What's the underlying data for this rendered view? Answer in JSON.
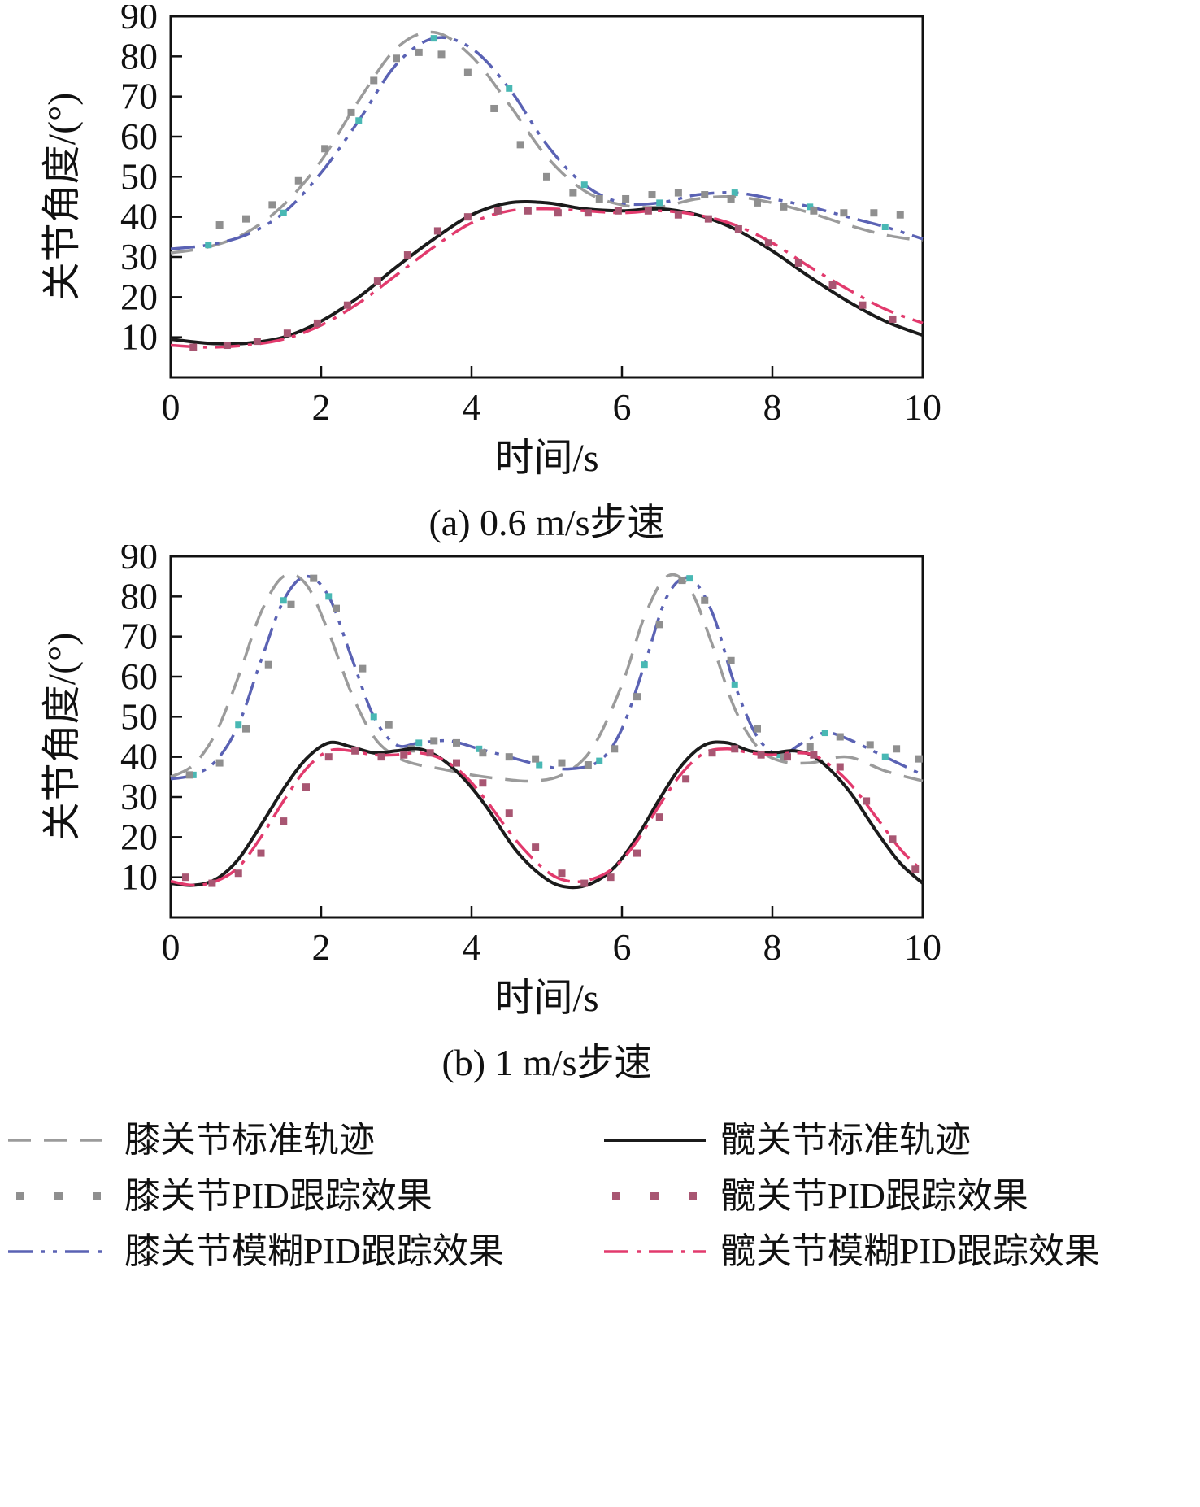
{
  "chart_data": [
    {
      "type": "line",
      "caption": "(a) 0.6 m/s步速",
      "xlabel": "时间/s",
      "ylabel": "关节角度/(°)",
      "xlim": [
        0,
        10
      ],
      "ylim": [
        0,
        90
      ],
      "xticks": [
        0,
        2,
        4,
        6,
        8,
        10
      ],
      "yticks": [
        10,
        20,
        30,
        40,
        50,
        60,
        70,
        80,
        90
      ],
      "grid": false,
      "legend_position": "bottom",
      "series": [
        {
          "name": "膝关节标准轨迹",
          "style": "knee_std",
          "x": [
            0,
            0.5,
            1,
            1.5,
            2,
            2.5,
            3,
            3.5,
            4,
            4.5,
            5,
            5.5,
            6,
            6.5,
            7,
            7.5,
            8,
            8.5,
            9,
            9.5,
            10
          ],
          "y": [
            31,
            32.5,
            36,
            43,
            54,
            69,
            82,
            86,
            80,
            68,
            55,
            46.5,
            43,
            42.5,
            44.5,
            45,
            43.5,
            41,
            38,
            35.5,
            34
          ]
        },
        {
          "name": "膝关节模糊PID跟踪效果",
          "style": "knee_fuzzy",
          "x": [
            0,
            0.5,
            1,
            1.5,
            2,
            2.5,
            3,
            3.5,
            4,
            4.5,
            5,
            5.5,
            6,
            6.5,
            7,
            7.5,
            8,
            8.5,
            9,
            9.5,
            10
          ],
          "y": [
            32,
            33,
            35.5,
            41,
            51,
            64,
            78,
            84.5,
            82,
            72,
            58,
            48,
            43.5,
            43.5,
            45.5,
            46,
            44.5,
            42.5,
            40,
            37.5,
            34.5
          ]
        },
        {
          "name": "膝关节PID跟踪效果",
          "style": "knee_pid",
          "x": [
            0.65,
            1.0,
            1.35,
            1.7,
            2.05,
            2.4,
            2.7,
            3.0,
            3.3,
            3.6,
            3.95,
            4.3,
            4.65,
            5.0,
            5.35,
            5.7,
            6.05,
            6.4,
            6.75,
            7.1,
            7.45,
            7.8,
            8.15,
            8.55,
            8.95,
            9.35,
            9.7
          ],
          "y": [
            38,
            39.5,
            43,
            49,
            57,
            66,
            74,
            79.5,
            81,
            80.5,
            76,
            67,
            58,
            50,
            46,
            44.5,
            44.5,
            45.5,
            46,
            45.5,
            44.5,
            43.5,
            42.5,
            41.5,
            41,
            41,
            40.5
          ]
        },
        {
          "name": "髋关节标准轨迹",
          "style": "hip_std",
          "x": [
            0,
            0.5,
            1,
            1.5,
            2,
            2.5,
            3,
            3.5,
            4,
            4.5,
            5,
            5.5,
            6,
            6.5,
            7,
            7.5,
            8,
            8.5,
            9,
            9.5,
            10
          ],
          "y": [
            9.5,
            8.5,
            8.5,
            10,
            14,
            20,
            27.5,
            34.5,
            40.5,
            43.5,
            43.5,
            42,
            41.5,
            42,
            40.5,
            37,
            31.5,
            25,
            19,
            14,
            10.5
          ]
        },
        {
          "name": "髋关节模糊PID跟踪效果",
          "style": "hip_fuzzy",
          "x": [
            0,
            0.5,
            1,
            1.5,
            2,
            2.5,
            3,
            3.5,
            4,
            4.5,
            5,
            5.5,
            6,
            6.5,
            7,
            7.5,
            8,
            8.5,
            9,
            9.5,
            10
          ],
          "y": [
            8,
            7.5,
            8,
            9.5,
            13,
            18.5,
            25.5,
            32.5,
            38.5,
            41.5,
            42,
            41.5,
            41,
            41.5,
            40.5,
            38,
            33.5,
            27.5,
            22,
            17,
            13.5
          ]
        },
        {
          "name": "髋关节PID跟踪效果",
          "style": "hip_pid",
          "x": [
            0.3,
            0.75,
            1.15,
            1.55,
            1.95,
            2.35,
            2.75,
            3.15,
            3.55,
            3.95,
            4.35,
            4.75,
            5.15,
            5.55,
            5.95,
            6.35,
            6.75,
            7.15,
            7.55,
            7.95,
            8.35,
            8.8,
            9.2,
            9.6
          ],
          "y": [
            7.5,
            8,
            9,
            11,
            13.5,
            18,
            24,
            30.5,
            36.5,
            40,
            41.5,
            41.5,
            41,
            41,
            41.5,
            41.5,
            40.5,
            39.5,
            37,
            33.5,
            28.5,
            23,
            18,
            14.5
          ]
        }
      ]
    },
    {
      "type": "line",
      "caption": "(b) 1 m/s步速",
      "xlabel": "时间/s",
      "ylabel": "关节角度/(°)",
      "xlim": [
        0,
        10
      ],
      "ylim": [
        0,
        90
      ],
      "xticks": [
        0,
        2,
        4,
        6,
        8,
        10
      ],
      "yticks": [
        10,
        20,
        30,
        40,
        50,
        60,
        70,
        80,
        90
      ],
      "grid": false,
      "legend_position": "bottom",
      "series": [
        {
          "name": "膝关节标准轨迹",
          "style": "knee_std",
          "x": [
            0,
            0.3,
            0.6,
            0.9,
            1.2,
            1.5,
            1.8,
            2.1,
            2.4,
            2.7,
            3.0,
            3.3,
            3.6,
            4.0,
            4.4,
            4.8,
            5.2,
            5.6,
            6.0,
            6.3,
            6.6,
            6.9,
            7.2,
            7.5,
            7.8,
            8.1,
            8.5,
            9.0,
            9.5,
            10
          ],
          "y": [
            35,
            38,
            46,
            60,
            76,
            85,
            83,
            71,
            56,
            45,
            40,
            38,
            37,
            35.5,
            34.5,
            34,
            35.5,
            42,
            58,
            75,
            85,
            82,
            68,
            52,
            42.5,
            39,
            38.5,
            40,
            36.5,
            34
          ]
        },
        {
          "name": "膝关节模糊PID跟踪效果",
          "style": "knee_fuzzy",
          "x": [
            0,
            0.3,
            0.6,
            0.9,
            1.2,
            1.5,
            1.8,
            2.1,
            2.4,
            2.7,
            3.0,
            3.3,
            3.7,
            4.1,
            4.5,
            4.9,
            5.3,
            5.7,
            6.0,
            6.3,
            6.6,
            6.9,
            7.2,
            7.5,
            7.8,
            8.1,
            8.4,
            8.7,
            9.0,
            9.5,
            10
          ],
          "y": [
            34.5,
            35.5,
            39,
            48,
            64,
            79,
            85,
            80,
            65,
            50,
            43,
            43.5,
            44,
            42,
            40,
            38,
            37,
            39,
            47,
            63,
            80,
            84.5,
            76,
            58,
            45,
            40.5,
            43.5,
            46,
            44.5,
            40,
            35.5
          ]
        },
        {
          "name": "膝关节PID跟踪效果",
          "style": "knee_pid",
          "x": [
            0.25,
            0.65,
            1.0,
            1.3,
            1.6,
            1.9,
            2.2,
            2.55,
            2.9,
            3.2,
            3.5,
            3.8,
            4.15,
            4.5,
            4.85,
            5.2,
            5.55,
            5.9,
            6.2,
            6.5,
            6.8,
            7.1,
            7.45,
            7.8,
            8.15,
            8.5,
            8.9,
            9.3,
            9.65,
            9.95
          ],
          "y": [
            35.5,
            38.5,
            47,
            63,
            78,
            84.5,
            77,
            62,
            48,
            42,
            44,
            43.5,
            41,
            40,
            39.5,
            38.5,
            38,
            42,
            55,
            73,
            84,
            79,
            64,
            47,
            40,
            42.5,
            45,
            43,
            42,
            39.5
          ]
        },
        {
          "name": "髋关节标准轨迹",
          "style": "hip_std",
          "x": [
            0,
            0.3,
            0.6,
            0.9,
            1.2,
            1.5,
            1.8,
            2.1,
            2.4,
            2.7,
            3.0,
            3.3,
            3.6,
            3.9,
            4.2,
            4.6,
            5.0,
            5.3,
            5.6,
            5.9,
            6.2,
            6.5,
            6.8,
            7.1,
            7.4,
            7.7,
            8.0,
            8.3,
            8.6,
            9.0,
            9.4,
            9.7,
            10
          ],
          "y": [
            8.5,
            8,
            9.5,
            14.5,
            23,
            32,
            39.5,
            43.5,
            42.5,
            41,
            41.5,
            42,
            39.5,
            34.5,
            27.5,
            16.5,
            9.5,
            7.5,
            8.5,
            12.5,
            20,
            29.5,
            38,
            43,
            43.5,
            41.5,
            41,
            41.5,
            39.5,
            32,
            21,
            13.5,
            8.5
          ]
        },
        {
          "name": "髋关节模糊PID跟踪效果",
          "style": "hip_fuzzy",
          "x": [
            0,
            0.3,
            0.6,
            0.9,
            1.2,
            1.5,
            1.8,
            2.1,
            2.4,
            2.7,
            3.0,
            3.3,
            3.6,
            3.9,
            4.2,
            4.6,
            5.0,
            5.3,
            5.6,
            5.9,
            6.2,
            6.5,
            6.8,
            7.1,
            7.4,
            7.7,
            8.0,
            8.3,
            8.6,
            9.0,
            9.4,
            9.7,
            10
          ],
          "y": [
            9,
            8,
            9,
            12.5,
            20,
            29,
            37,
            41.5,
            41.5,
            40.5,
            40.5,
            41,
            39.5,
            35.5,
            29,
            19,
            11.5,
            9,
            9.5,
            12.5,
            19,
            28,
            36,
            41,
            42,
            41,
            40.5,
            41,
            40,
            34,
            24.5,
            17,
            11.5
          ]
        },
        {
          "name": "髋关节PID跟踪效果",
          "style": "hip_pid",
          "x": [
            0.2,
            0.55,
            0.9,
            1.2,
            1.5,
            1.8,
            2.1,
            2.45,
            2.8,
            3.1,
            3.45,
            3.8,
            4.15,
            4.5,
            4.85,
            5.2,
            5.5,
            5.85,
            6.2,
            6.5,
            6.85,
            7.2,
            7.5,
            7.85,
            8.2,
            8.55,
            8.9,
            9.25,
            9.6,
            9.9
          ],
          "y": [
            10,
            8.5,
            11,
            16,
            24,
            32.5,
            40,
            41.5,
            40,
            40.5,
            41,
            38.5,
            33.5,
            26,
            17.5,
            11,
            8.5,
            10,
            16,
            25,
            34.5,
            41,
            42,
            40.5,
            40,
            40.5,
            37.5,
            29,
            19.5,
            12
          ]
        }
      ]
    }
  ],
  "styles": {
    "knee_std": {
      "kind": "dashed",
      "color": "#9b9b9b",
      "width": 3.5
    },
    "knee_pid": {
      "kind": "squares",
      "color": "#8f8f8f",
      "size": 9
    },
    "knee_fuzzy": {
      "kind": "dashdotdot",
      "color": "#5a62b4",
      "width": 3.5,
      "marker_color": "#49b8b4",
      "marker_every": 2
    },
    "hip_std": {
      "kind": "solid",
      "color": "#1b1b1b",
      "width": 4
    },
    "hip_pid": {
      "kind": "squares",
      "color": "#a85672",
      "size": 9
    },
    "hip_fuzzy": {
      "kind": "dashdot",
      "color": "#e23a6d",
      "width": 3.5
    }
  },
  "legend": {
    "items": [
      {
        "label": "膝关节标准轨迹",
        "style": "knee_std"
      },
      {
        "label": "髋关节标准轨迹",
        "style": "hip_std"
      },
      {
        "label": "膝关节PID跟踪效果",
        "style": "knee_pid"
      },
      {
        "label": "髋关节PID跟踪效果",
        "style": "hip_pid"
      },
      {
        "label": "膝关节模糊PID跟踪效果",
        "style": "knee_fuzzy"
      },
      {
        "label": "髋关节模糊PID跟踪效果",
        "style": "hip_fuzzy"
      }
    ]
  }
}
